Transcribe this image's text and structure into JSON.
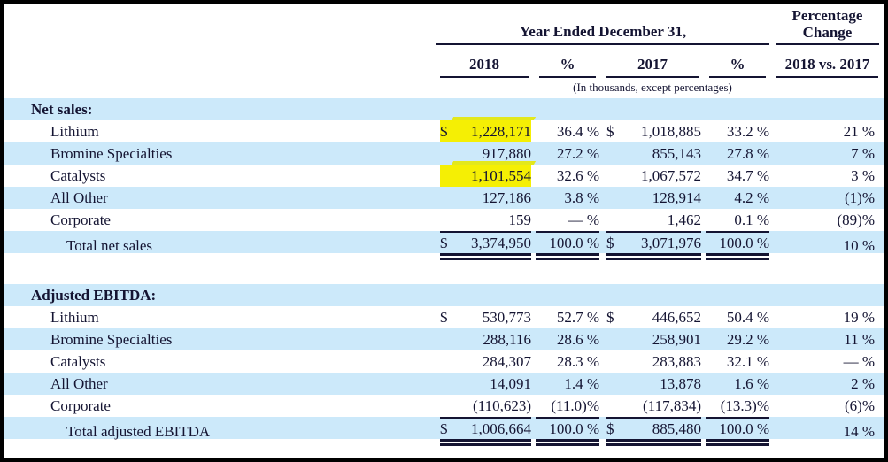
{
  "header": {
    "group_title": "Year Ended December 31,",
    "pct_change_title": "Percentage Change",
    "col_2018": "2018",
    "col_pct_1": "%",
    "col_2017": "2017",
    "col_pct_2": "%",
    "col_vs": "2018 vs. 2017",
    "note": "(In thousands, except percentages)"
  },
  "sections": [
    {
      "title": "Net sales:",
      "rows": [
        {
          "label": "Lithium",
          "sign2018": "$",
          "v2018": "1,228,171",
          "hl": true,
          "p2018": "36.4 %",
          "sign2017": "$",
          "v2017": "1,018,885",
          "p2017": "33.2 %",
          "chg": "21 %"
        },
        {
          "label": "Bromine Specialties",
          "sign2018": "",
          "v2018": "917,880",
          "p2018": "27.2 %",
          "sign2017": "",
          "v2017": "855,143",
          "p2017": "27.8 %",
          "chg": "7 %"
        },
        {
          "label": "Catalysts",
          "sign2018": "",
          "v2018": "1,101,554",
          "hl": true,
          "p2018": "32.6 %",
          "sign2017": "",
          "v2017": "1,067,572",
          "p2017": "34.7 %",
          "chg": "3 %"
        },
        {
          "label": "All Other",
          "sign2018": "",
          "v2018": "127,186",
          "p2018": "3.8 %",
          "sign2017": "",
          "v2017": "128,914",
          "p2017": "4.2 %",
          "chg": "(1)%"
        },
        {
          "label": "Corporate",
          "sign2018": "",
          "v2018": "159",
          "p2018": "— %",
          "sign2017": "",
          "v2017": "1,462",
          "p2017": "0.1 %",
          "chg": "(89)%"
        },
        {
          "label": "Total net sales",
          "total": true,
          "sign2018": "$",
          "v2018": "3,374,950",
          "p2018": "100.0 %",
          "sign2017": "$",
          "v2017": "3,071,976",
          "p2017": "100.0 %",
          "chg": "10 %"
        }
      ]
    },
    {
      "title": "Adjusted EBITDA:",
      "rows": [
        {
          "label": "Lithium",
          "sign2018": "$",
          "v2018": "530,773",
          "p2018": "52.7 %",
          "sign2017": "$",
          "v2017": "446,652",
          "p2017": "50.4 %",
          "chg": "19 %"
        },
        {
          "label": "Bromine Specialties",
          "sign2018": "",
          "v2018": "288,116",
          "p2018": "28.6 %",
          "sign2017": "",
          "v2017": "258,901",
          "p2017": "29.2 %",
          "chg": "11 %"
        },
        {
          "label": "Catalysts",
          "sign2018": "",
          "v2018": "284,307",
          "p2018": "28.3 %",
          "sign2017": "",
          "v2017": "283,883",
          "p2017": "32.1 %",
          "chg": "— %"
        },
        {
          "label": "All Other",
          "sign2018": "",
          "v2018": "14,091",
          "p2018": "1.4 %",
          "sign2017": "",
          "v2017": "13,878",
          "p2017": "1.6 %",
          "chg": "2 %"
        },
        {
          "label": "Corporate",
          "sign2018": "",
          "v2018": "(110,623)",
          "p2018": "(11.0)%",
          "sign2017": "",
          "v2017": "(117,834)",
          "p2017": "(13.3)%",
          "chg": "(6)%"
        },
        {
          "label": "Total adjusted EBITDA",
          "total": true,
          "sign2018": "$",
          "v2018": "1,006,664",
          "p2018": "100.0 %",
          "sign2017": "$",
          "v2017": "885,480",
          "p2017": "100.0 %",
          "chg": "14 %"
        }
      ]
    }
  ],
  "colors": {
    "row_band_blue": "#cce9fa",
    "highlight_yellow": "#f5ef04",
    "ink": "#141432",
    "frame_border": "#000000"
  }
}
